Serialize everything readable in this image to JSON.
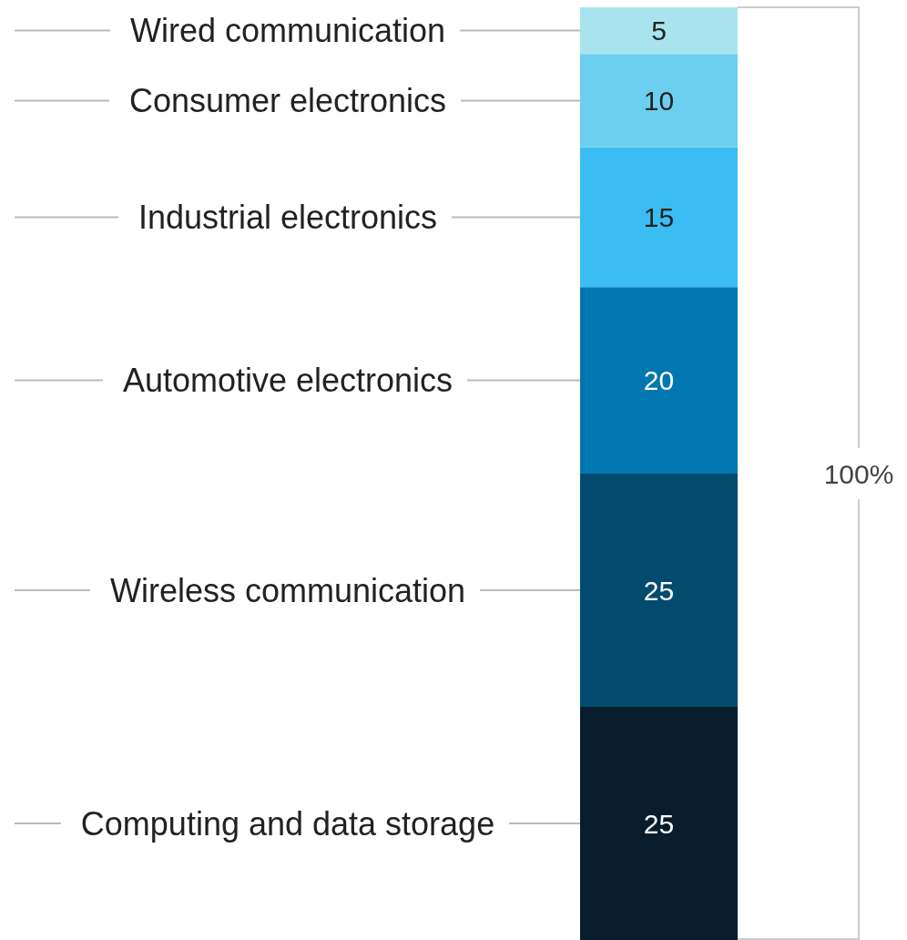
{
  "chart_data": {
    "type": "bar",
    "stacked": true,
    "categories": [
      null
    ],
    "data_labels": true,
    "legend": false,
    "series": [
      {
        "name": "Computing and data storage",
        "color": "#071d2d",
        "values": [
          25
        ]
      },
      {
        "name": "Wireless communication",
        "color": "#034b6e",
        "values": [
          25
        ]
      },
      {
        "name": "Automotive electronics",
        "color": "#0077b0",
        "values": [
          20
        ]
      },
      {
        "name": "Industrial electronics",
        "color": "#3bbcf2",
        "values": [
          15
        ]
      },
      {
        "name": "Consumer electronics",
        "color": "#6dcff0",
        "values": [
          10
        ]
      },
      {
        "name": "Wired communication",
        "color": "#a9e4ee",
        "values": [
          5
        ]
      }
    ],
    "annotations": [
      "100%"
    ]
  }
}
